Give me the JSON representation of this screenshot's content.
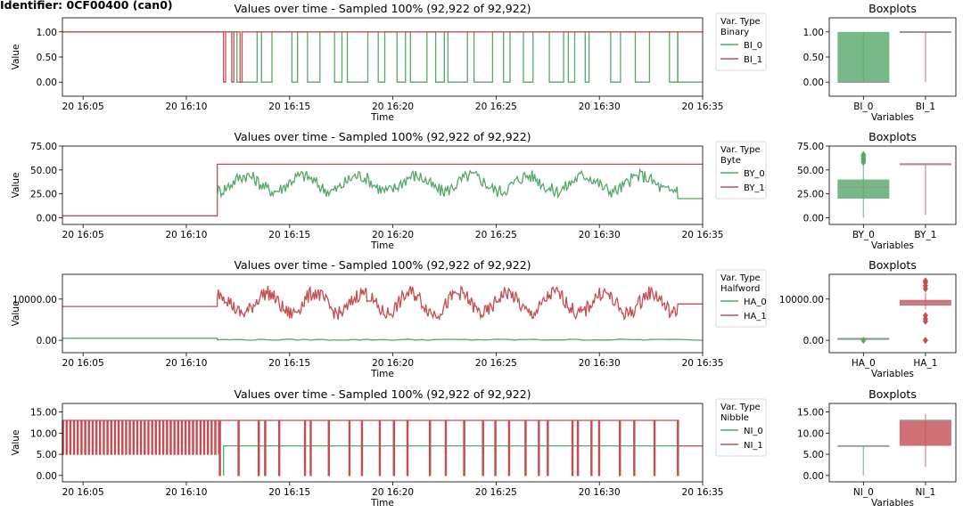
{
  "identifier": "Identifier: 0CF00400 (can0)",
  "colors": {
    "green": "#55a868",
    "red": "#c44e52",
    "gray": "#999999"
  },
  "time_ticks": [
    "20 16:05",
    "20 16:10",
    "20 16:15",
    "20 16:20",
    "20 16:25",
    "20 16:30",
    "20 16:35"
  ],
  "chart_data": [
    {
      "type": "line",
      "title": "Values over time - Sampled 100% (92,922 of 92,922)",
      "xlabel": "Time",
      "ylabel": "Value",
      "x_range": [
        "16:04",
        "16:35"
      ],
      "ylim": [
        -0.28,
        1.28
      ],
      "yticks": [
        0,
        0.5,
        1
      ],
      "ytick_labels": [
        "0.00",
        "0.50",
        "1.00"
      ],
      "legend": {
        "title": "Var. Type",
        "subtitle": "Binary",
        "placement": "outside-right"
      },
      "series": [
        {
          "name": "BI_0",
          "color": "#55a868",
          "baseline": 1,
          "start_minute": 7.5,
          "end_minute": 29.8,
          "pattern": "toggles 0/1",
          "after_value": 0
        },
        {
          "name": "BI_1",
          "color": "#c44e52",
          "baseline": 1,
          "start_minute": 7.8,
          "end_minute": 8.8,
          "pattern": "toggles 0/1 briefly",
          "after_value": 1
        }
      ],
      "boxplot": {
        "title": "Boxplots",
        "xlabel": "Variables",
        "categories": [
          "BI_0",
          "BI_1"
        ],
        "ylim": [
          -0.28,
          1.28
        ],
        "yticks": [
          0,
          0.5,
          1
        ],
        "ytick_labels": [
          "0.00",
          "0.50",
          "1.00"
        ],
        "boxes": [
          {
            "name": "BI_0",
            "low": 0,
            "q1": 0,
            "median": 0,
            "q3": 1,
            "high": 1,
            "color": "#55a868"
          },
          {
            "name": "BI_1",
            "low": 0,
            "q1": 1,
            "median": 1,
            "q3": 1,
            "high": 1,
            "color": "#c44e52"
          }
        ]
      }
    },
    {
      "type": "line",
      "title": "Values over time - Sampled 100% (92,922 of 92,922)",
      "xlabel": "Time",
      "ylabel": "Value",
      "x_range": [
        "16:04",
        "16:35"
      ],
      "ylim": [
        -7,
        75
      ],
      "yticks": [
        0,
        25,
        50,
        75
      ],
      "ytick_labels": [
        "0.00",
        "25.00",
        "50.00",
        "75.00"
      ],
      "legend": {
        "title": "Var. Type",
        "subtitle": "Byte",
        "placement": "outside-right"
      },
      "series": [
        {
          "name": "BY_0",
          "color": "#55a868",
          "before_value": 0,
          "start_minute": 7.5,
          "end_minute": 29.8,
          "range": [
            20,
            66
          ],
          "typical": 36,
          "after_value": 20
        },
        {
          "name": "BY_1",
          "color": "#c44e52",
          "before_value": 2,
          "start_minute": 7.5,
          "value": 56
        }
      ],
      "boxplot": {
        "title": "Boxplots",
        "xlabel": "Variables",
        "categories": [
          "BY_0",
          "BY_1"
        ],
        "ylim": [
          -7,
          75
        ],
        "yticks": [
          0,
          25,
          50,
          75
        ],
        "ytick_labels": [
          "0.00",
          "25.00",
          "50.00",
          "75.00"
        ],
        "boxes": [
          {
            "name": "BY_0",
            "low": 0,
            "q1": 20,
            "median": 32,
            "q3": 40,
            "high": 55,
            "outliers": [
              58,
              60,
              62,
              64,
              66
            ],
            "color": "#55a868"
          },
          {
            "name": "BY_1",
            "low": 3,
            "q1": 55,
            "median": 56,
            "q3": 57,
            "high": 57,
            "color": "#c44e52"
          }
        ]
      }
    },
    {
      "type": "line",
      "title": "Values over time - Sampled 100% (92,922 of 92,922)",
      "xlabel": "Time",
      "ylabel": "Value",
      "x_range": [
        "16:04",
        "16:35"
      ],
      "ylim": [
        -3000,
        16000
      ],
      "yticks": [
        0,
        10000
      ],
      "ytick_labels": [
        "0.00",
        "10000.00"
      ],
      "legend": {
        "title": "Var. Type",
        "subtitle": "Halfword",
        "placement": "outside-right"
      },
      "series": [
        {
          "name": "HA_0",
          "color": "#55a868",
          "before_value": 500,
          "start_minute": 7.5,
          "end_minute": 29.8,
          "typical": 0,
          "after_value": 0
        },
        {
          "name": "HA_1",
          "color": "#c44e52",
          "before_value": 8200,
          "start_minute": 7.5,
          "end_minute": 29.8,
          "range": [
            5000,
            14200
          ],
          "typical": 9000,
          "after_value": 8800
        }
      ],
      "boxplot": {
        "title": "Boxplots",
        "xlabel": "Variables",
        "categories": [
          "HA_0",
          "HA_1"
        ],
        "ylim": [
          -3000,
          16000
        ],
        "yticks": [
          0,
          10000
        ],
        "ytick_labels": [
          "0.00",
          "10000.00"
        ],
        "boxes": [
          {
            "name": "HA_0",
            "low": 0,
            "q1": 100,
            "median": 300,
            "q3": 600,
            "high": 700,
            "outliers": [
              0
            ],
            "color": "#55a868"
          },
          {
            "name": "HA_1",
            "low": 7500,
            "q1": 8400,
            "median": 9000,
            "q3": 9800,
            "high": 11500,
            "outliers": [
              12500,
              13200,
              14000,
              14400,
              6000,
              5200,
              4600,
              0
            ],
            "color": "#c44e52"
          }
        ]
      }
    },
    {
      "type": "line",
      "title": "Values over time - Sampled 100% (92,922 of 92,922)",
      "xlabel": "Time",
      "ylabel": "Value",
      "x_range": [
        "16:04",
        "16:35"
      ],
      "ylim": [
        -1.5,
        17
      ],
      "yticks": [
        0,
        5,
        10,
        15
      ],
      "ytick_labels": [
        "0.00",
        "5.00",
        "10.00",
        "15.00"
      ],
      "legend": {
        "title": "Var. Type",
        "subtitle": "Nibble",
        "placement": "outside-right"
      },
      "series": [
        {
          "name": "NI_0",
          "color": "#55a868",
          "start_minute": 7.8,
          "value": 7
        },
        {
          "name": "NI_1",
          "color": "#c44e52",
          "pattern": "toggles between 5 and 13 before 16:08, drops to 0 intermittently until 16:30",
          "high": 13,
          "low": 0,
          "after_value": 7
        }
      ],
      "boxplot": {
        "title": "Boxplots",
        "xlabel": "Variables",
        "categories": [
          "NI_0",
          "NI_1"
        ],
        "ylim": [
          -1.5,
          17
        ],
        "yticks": [
          0,
          5,
          10,
          15
        ],
        "ytick_labels": [
          "0.00",
          "5.00",
          "10.00",
          "15.00"
        ],
        "boxes": [
          {
            "name": "NI_0",
            "low": 0,
            "q1": 7,
            "median": 7,
            "q3": 7,
            "high": 7,
            "color": "#55a868"
          },
          {
            "name": "NI_1",
            "low": 2,
            "q1": 7,
            "median": 13,
            "q3": 13,
            "high": 14.5,
            "color": "#c44e52"
          }
        ]
      }
    }
  ]
}
